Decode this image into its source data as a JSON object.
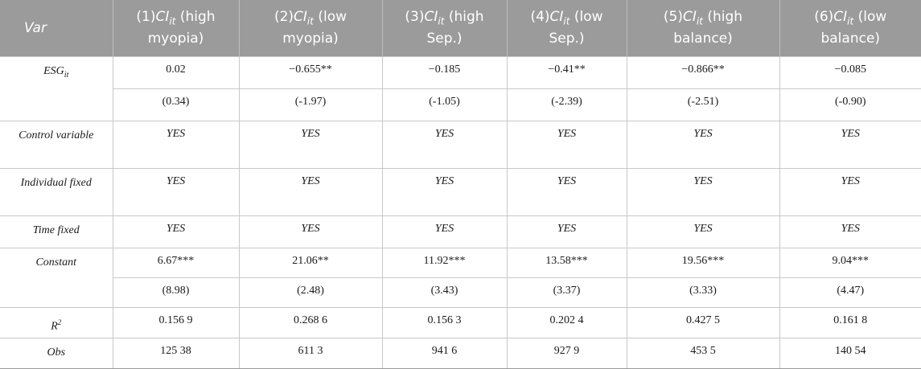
{
  "header": {
    "var": "Var",
    "cols": [
      {
        "pre": "(1)",
        "var": "CI",
        "sub": "it",
        "post": " (high myopia)"
      },
      {
        "pre": "(2)",
        "var": "CI",
        "sub": "it",
        "post": " (low myopia)"
      },
      {
        "pre": "(3)",
        "var": "CI",
        "sub": "it",
        "post": " (high Sep.)"
      },
      {
        "pre": "(4)",
        "var": "CI",
        "sub": "it",
        "post": " (low Sep.)"
      },
      {
        "pre": "(5)",
        "var": "CI",
        "sub": "it",
        "post": " (high balance)"
      },
      {
        "pre": "(6)",
        "var": "CI",
        "sub": "it",
        "post": " (low balance)"
      }
    ]
  },
  "rows": {
    "esg": {
      "label": "ESG",
      "label_sub": "it",
      "coef": [
        "0.02",
        "−0.655**",
        "−0.185",
        "−0.41**",
        "−0.866**",
        "−0.085"
      ],
      "t": [
        "(0.34)",
        "(-1.97)",
        "(-1.05)",
        "(-2.39)",
        "(-2.51)",
        "(-0.90)"
      ]
    },
    "control": {
      "label": "Control variable",
      "values": [
        "YES",
        "YES",
        "YES",
        "YES",
        "YES",
        "YES"
      ]
    },
    "individual": {
      "label": "Individual fixed",
      "values": [
        "YES",
        "YES",
        "YES",
        "YES",
        "YES",
        "YES"
      ]
    },
    "time": {
      "label": "Time fixed",
      "values": [
        "YES",
        "YES",
        "YES",
        "YES",
        "YES",
        "YES"
      ]
    },
    "constant": {
      "label": "Constant",
      "coef": [
        "6.67***",
        "21.06**",
        "11.92***",
        "13.58***",
        "19.56***",
        "9.04***"
      ],
      "t": [
        "(8.98)",
        "(2.48)",
        "(3.43)",
        "(3.37)",
        "(3.33)",
        "(4.47)"
      ]
    },
    "r2": {
      "label": "R",
      "label_sup": "2",
      "values": [
        "0.156 9",
        "0.268 6",
        "0.156 3",
        "0.202 4",
        "0.427 5",
        "0.161 8"
      ]
    },
    "obs": {
      "label": "Obs",
      "values": [
        "125 38",
        "611 3",
        "941 6",
        "927 9",
        "453 5",
        "140 54"
      ]
    }
  }
}
